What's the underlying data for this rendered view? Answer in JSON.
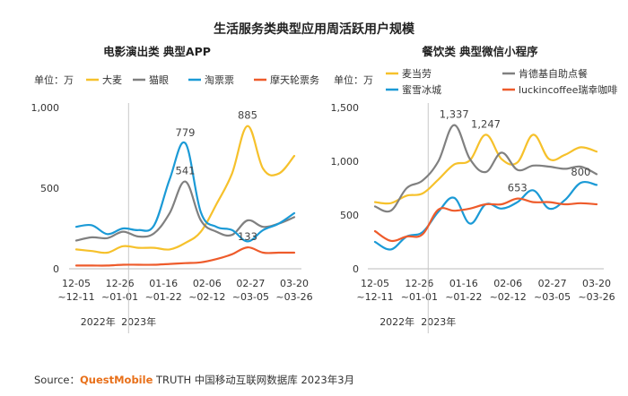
{
  "title": "生活服务类典型应用周活跃用户规模",
  "source": {
    "prefix": "Source：",
    "brand": "QuestMobile",
    "rest": " TRUTH 中国移动互联网数据库 2023年3月"
  },
  "colors": {
    "yellow": "#f6c12b",
    "gray": "#808080",
    "blue": "#1b9ad6",
    "red": "#ee5b2b"
  },
  "chart_data": [
    {
      "type": "line",
      "title": "电影演出类 典型APP",
      "unit_label": "单位：万",
      "ylim": [
        0,
        1000
      ],
      "yticks": [
        {
          "v": 0,
          "label": "0"
        },
        {
          "v": 500,
          "label": "500"
        },
        {
          "v": 1000,
          "label": "1,000"
        }
      ],
      "x_tick_labels": [
        {
          "i": 0,
          "lines": [
            "12-05",
            "~12-11"
          ]
        },
        {
          "i": 3,
          "lines": [
            "12-26",
            "~01-01"
          ]
        },
        {
          "i": 6,
          "lines": [
            "01-16",
            "~01-22"
          ]
        },
        {
          "i": 9,
          "lines": [
            "02-06",
            "~02-12"
          ]
        },
        {
          "i": 12,
          "lines": [
            "02-27",
            "~03-05"
          ]
        },
        {
          "i": 15,
          "lines": [
            "03-20",
            "~03-26"
          ]
        }
      ],
      "year_labels": [
        {
          "i": 1.5,
          "label": "2022年"
        },
        {
          "i": 4.3,
          "label": "2023年"
        }
      ],
      "divider_index": 3.6,
      "series": [
        {
          "name": "大麦",
          "color": "#f6c12b",
          "values": [
            120,
            110,
            100,
            140,
            130,
            130,
            120,
            160,
            230,
            400,
            590,
            885,
            620,
            590,
            700
          ]
        },
        {
          "name": "猫眼",
          "color": "#808080",
          "values": [
            175,
            195,
            190,
            230,
            200,
            220,
            345,
            541,
            300,
            230,
            210,
            300,
            260,
            280,
            320
          ]
        },
        {
          "name": "淘票票",
          "color": "#1b9ad6",
          "values": [
            260,
            270,
            215,
            250,
            240,
            270,
            555,
            779,
            350,
            260,
            240,
            170,
            240,
            280,
            345
          ]
        },
        {
          "name": "摩天轮票务",
          "color": "#ee5b2b",
          "values": [
            20,
            20,
            20,
            25,
            25,
            25,
            30,
            35,
            40,
            60,
            90,
            133,
            100,
            100,
            100
          ]
        }
      ],
      "annotations": [
        {
          "series": 2,
          "i": 7,
          "label": "779"
        },
        {
          "series": 1,
          "i": 7,
          "label": "541"
        },
        {
          "series": 0,
          "i": 11,
          "label": "885"
        },
        {
          "series": 3,
          "i": 11,
          "label": "133"
        }
      ]
    },
    {
      "type": "line",
      "title": "餐饮类 典型微信小程序",
      "unit_label": "单位：万",
      "ylim": [
        0,
        1500
      ],
      "yticks": [
        {
          "v": 0,
          "label": "0"
        },
        {
          "v": 500,
          "label": "500"
        },
        {
          "v": 1000,
          "label": "1,000"
        },
        {
          "v": 1500,
          "label": "1,500"
        }
      ],
      "x_tick_labels": [
        {
          "i": 0,
          "lines": [
            "12-05",
            "~12-11"
          ]
        },
        {
          "i": 3,
          "lines": [
            "12-26",
            "~01-01"
          ]
        },
        {
          "i": 6,
          "lines": [
            "01-16",
            "~01-22"
          ]
        },
        {
          "i": 9,
          "lines": [
            "02-06",
            "~02-12"
          ]
        },
        {
          "i": 12,
          "lines": [
            "02-27",
            "~03-05"
          ]
        },
        {
          "i": 15,
          "lines": [
            "03-20",
            "~03-26"
          ]
        }
      ],
      "year_labels": [
        {
          "i": 1.5,
          "label": "2022年"
        },
        {
          "i": 4.3,
          "label": "2023年"
        }
      ],
      "divider_index": 3.6,
      "series": [
        {
          "name": "麦当劳",
          "color": "#f6c12b",
          "values": [
            620,
            610,
            680,
            700,
            830,
            970,
            1010,
            1247,
            1020,
            990,
            1247,
            1020,
            1060,
            1130,
            1090
          ]
        },
        {
          "name": "肯德基自助点餐",
          "color": "#808080",
          "values": [
            580,
            540,
            750,
            820,
            1000,
            1337,
            1020,
            900,
            1080,
            920,
            960,
            950,
            930,
            950,
            880
          ]
        },
        {
          "name": "蜜雪冰城",
          "color": "#1b9ad6",
          "values": [
            250,
            180,
            300,
            340,
            530,
            660,
            420,
            600,
            560,
            620,
            730,
            560,
            640,
            800,
            780
          ]
        },
        {
          "name": "luckincoffee瑞幸咖啡",
          "color": "#ee5b2b",
          "values": [
            350,
            260,
            300,
            320,
            550,
            540,
            560,
            600,
            600,
            653,
            620,
            620,
            600,
            610,
            600
          ]
        }
      ],
      "annotations": [
        {
          "series": 1,
          "i": 5,
          "label": "1,337"
        },
        {
          "series": 0,
          "i": 7,
          "label": "1,247"
        },
        {
          "series": 3,
          "i": 9,
          "label": "653"
        },
        {
          "series": 2,
          "i": 13,
          "label": "800"
        }
      ]
    }
  ]
}
